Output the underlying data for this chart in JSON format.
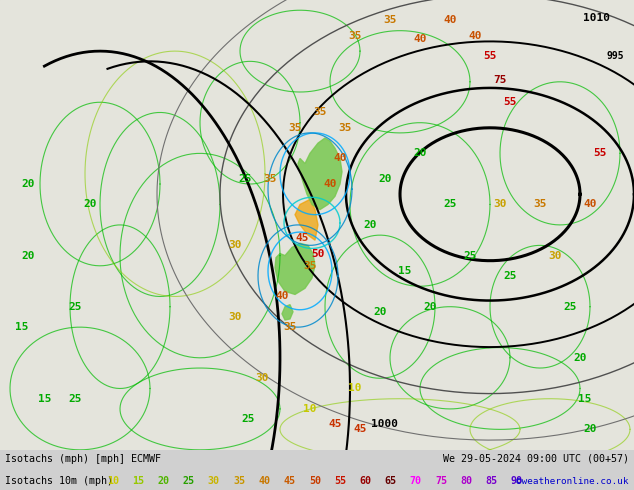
{
  "title_left": "Isotachs (mph) [mph] ECMWF",
  "title_right": "We 29-05-2024 09:00 UTC (00+57)",
  "legend_label": "Isotachs 10m (mph)",
  "copyright": "©weatheronline.co.uk",
  "legend_values": [
    10,
    15,
    20,
    25,
    30,
    35,
    40,
    45,
    50,
    55,
    60,
    65,
    70,
    75,
    80,
    85,
    90
  ],
  "leg_text_colors": [
    "#c8c800",
    "#96c800",
    "#64b400",
    "#32a000",
    "#c8c800",
    "#c8a000",
    "#c87800",
    "#c85000",
    "#c83200",
    "#c80000",
    "#960000",
    "#640000",
    "#ff00ff",
    "#cc00cc",
    "#aa00cc",
    "#8800cc",
    "#6600cc"
  ],
  "bg_color": "#d0d0d0",
  "map_bg": "#e8e8e0",
  "fig_width": 6.34,
  "fig_height": 4.9,
  "dpi": 100,
  "map_image_path": null,
  "bottom_bar_height": 0.082,
  "font_size_legend": 7.2,
  "font_size_title": 7.2
}
